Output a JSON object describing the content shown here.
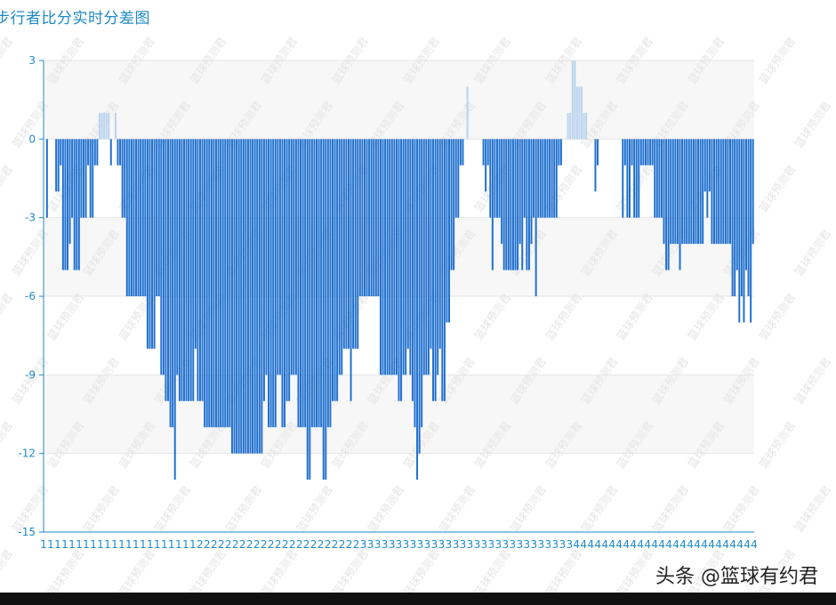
{
  "title": "步行者比分实时分差图",
  "credit": "头条 @篮球有约君",
  "watermark": "篮球预测君",
  "colors": {
    "neg": "#1f6fce",
    "pos": "#b9d3ee",
    "axis": "#1f8ac7",
    "band": "#f7f7f7",
    "grid": "#e6e6e6"
  },
  "chart_data": {
    "type": "bar",
    "title": "步行者比分实时分差图",
    "ylim": [
      -15,
      3
    ],
    "yticks": [
      3,
      0,
      -3,
      -6,
      -9,
      -12,
      -15
    ],
    "xtick_labels": [
      "1",
      "1",
      "1",
      "1",
      "1",
      "1",
      "1",
      "1",
      "1",
      "1",
      "1",
      "1",
      "1",
      "1",
      "1",
      "1",
      "1",
      "1",
      "1",
      "1",
      "1",
      "1",
      "2",
      "2",
      "2",
      "2",
      "2",
      "2",
      "2",
      "2",
      "2",
      "2",
      "2",
      "2",
      "2",
      "2",
      "2",
      "2",
      "2",
      "2",
      "2",
      "2",
      "2",
      "2",
      "2",
      "3",
      "3",
      "3",
      "3",
      "3",
      "3",
      "3",
      "3",
      "3",
      "3",
      "3",
      "3",
      "3",
      "3",
      "3",
      "3",
      "3",
      "3",
      "3",
      "3",
      "3",
      "3",
      "3",
      "3",
      "3",
      "3",
      "3",
      "3",
      "3",
      "3",
      "4",
      "4",
      "4",
      "4",
      "4",
      "4",
      "4",
      "4",
      "4",
      "4",
      "4",
      "4",
      "4",
      "4",
      "4",
      "4",
      "4",
      "4",
      "4",
      "4",
      "4",
      "4",
      "4",
      "4",
      "4",
      "4"
    ],
    "values": [
      0,
      -3,
      0,
      0,
      0,
      -2,
      -2,
      -1,
      -5,
      -5,
      -5,
      -4,
      -3,
      -5,
      -5,
      -5,
      -3,
      -3,
      -3,
      -1,
      -3,
      -3,
      -1,
      -1,
      1,
      1,
      1,
      1,
      1,
      -1,
      0,
      1,
      -1,
      -1,
      -3,
      -3,
      -6,
      -6,
      -6,
      -6,
      -6,
      -6,
      -6,
      -6,
      -6,
      -8,
      -8,
      -8,
      -8,
      -6,
      -6,
      -9,
      -9,
      -10,
      -10,
      -11,
      -11,
      -13,
      -9,
      -10,
      -10,
      -10,
      -10,
      -10,
      -10,
      -10,
      -8,
      -10,
      -10,
      -10,
      -11,
      -11,
      -11,
      -11,
      -11,
      -11,
      -11,
      -11,
      -11,
      -11,
      -11,
      -11,
      -12,
      -12,
      -12,
      -12,
      -12,
      -12,
      -12,
      -12,
      -12,
      -12,
      -12,
      -12,
      -12,
      -12,
      -10,
      -9,
      -11,
      -11,
      -11,
      -11,
      -9,
      -9,
      -11,
      -11,
      -10,
      -10,
      -9,
      -9,
      -9,
      -11,
      -11,
      -11,
      -11,
      -13,
      -13,
      -11,
      -11,
      -11,
      -11,
      -11,
      -13,
      -13,
      -11,
      -11,
      -10,
      -10,
      -10,
      -9,
      -9,
      -8,
      -8,
      -8,
      -10,
      -8,
      -8,
      -8,
      -6,
      -6,
      -6,
      -6,
      -6,
      -6,
      -6,
      -6,
      -6,
      -9,
      -9,
      -9,
      -9,
      -9,
      -9,
      -9,
      -9,
      -10,
      -10,
      -9,
      -9,
      -8,
      -9,
      -10,
      -11,
      -13,
      -12,
      -11,
      -9,
      -9,
      -9,
      -8,
      -10,
      -10,
      -9,
      -8,
      -10,
      -10,
      -7,
      -7,
      -5,
      -5,
      -3,
      -3,
      -1,
      -1,
      0,
      2,
      0,
      0,
      0,
      0,
      0,
      0,
      -1,
      -2,
      -1,
      -3,
      -5,
      -3,
      -3,
      -3,
      -4,
      -5,
      -5,
      -5,
      -5,
      -5,
      -5,
      -5,
      -4,
      -5,
      -3,
      -5,
      -5,
      -4,
      -3,
      -6,
      -3,
      -3,
      -3,
      -3,
      -3,
      -3,
      -3,
      -3,
      -3,
      -1,
      -1,
      0,
      0,
      1,
      1,
      3,
      3,
      2,
      2,
      2,
      1,
      1,
      0,
      0,
      0,
      -2,
      -1,
      0,
      0,
      0,
      0,
      0,
      0,
      0,
      0,
      0,
      0,
      -3,
      -1,
      -3,
      -3,
      -1,
      -3,
      -3,
      -3,
      -1,
      -1,
      -1,
      -1,
      -1,
      -1,
      -3,
      -3,
      -3,
      -3,
      -4,
      -5,
      -5,
      -4,
      -4,
      -4,
      -4,
      -5,
      -4,
      -4,
      -4,
      -4,
      -4,
      -4,
      -4,
      -4,
      -4,
      -4,
      -2,
      -3,
      -2,
      -4,
      -4,
      -4,
      -4,
      -4,
      -4,
      -4,
      -4,
      -4,
      -6,
      -6,
      -5,
      -7,
      -6,
      -7,
      -5,
      -6,
      -7,
      -4
    ]
  }
}
